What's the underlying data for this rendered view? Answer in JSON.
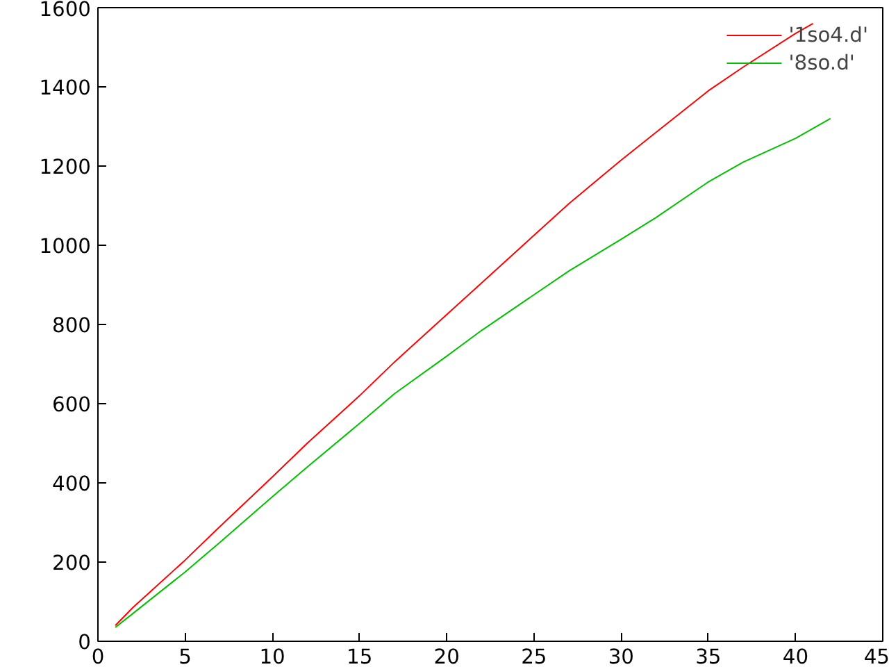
{
  "chart_data": {
    "type": "line",
    "xlim": [
      0,
      45
    ],
    "ylim": [
      0,
      1600
    ],
    "xticks": [
      0,
      5,
      10,
      15,
      20,
      25,
      30,
      35,
      40,
      45
    ],
    "yticks": [
      0,
      200,
      400,
      600,
      800,
      1000,
      1200,
      1400,
      1600
    ],
    "grid": false,
    "legend": "top right",
    "series": [
      {
        "name": "'1so4.d'",
        "color": "#ff0000",
        "x": [
          1,
          2,
          3,
          5,
          7,
          10,
          12,
          15,
          17,
          20,
          22,
          25,
          27,
          30,
          32,
          35,
          37,
          40,
          41
        ],
        "values": [
          40,
          85,
          125,
          205,
          290,
          415,
          500,
          620,
          705,
          825,
          905,
          1025,
          1105,
          1215,
          1285,
          1390,
          1450,
          1535,
          1560
        ]
      },
      {
        "name": "'8so.d'",
        "color": "#00c000",
        "x": [
          1,
          2,
          3,
          5,
          7,
          10,
          12,
          15,
          17,
          20,
          22,
          25,
          27,
          30,
          32,
          35,
          37,
          40,
          42
        ],
        "values": [
          35,
          70,
          105,
          175,
          250,
          365,
          440,
          550,
          625,
          720,
          785,
          875,
          935,
          1015,
          1070,
          1160,
          1210,
          1270,
          1320
        ]
      }
    ]
  }
}
